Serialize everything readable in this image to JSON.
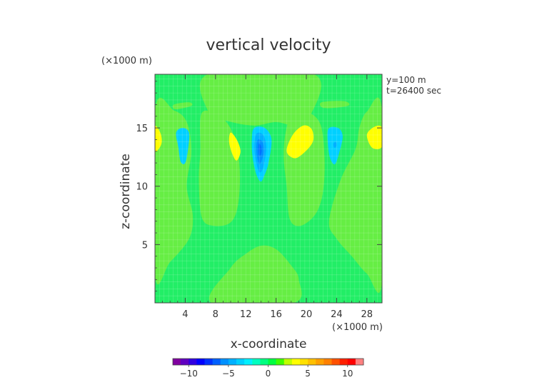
{
  "chart_data": {
    "type": "heatmap",
    "title": "vertical velocity",
    "xlabel": "x-coordinate",
    "ylabel": "z-coordinate",
    "x_unit_label": "(×1000 m)",
    "y_unit_label": "(×1000 m)",
    "annotations": [
      "y=100 m",
      "t=26400 sec"
    ],
    "xlim": [
      0,
      30
    ],
    "ylim": [
      0,
      19.6
    ],
    "x_ticks": [
      4,
      8,
      12,
      16,
      20,
      24,
      28
    ],
    "y_ticks": [
      5,
      10,
      15
    ],
    "grid": true,
    "colorbar": {
      "range": [
        -12,
        12
      ],
      "ticks": [
        -10,
        -5,
        0,
        5,
        10
      ],
      "colors": [
        "#8000a0",
        "#6000c0",
        "#3000e0",
        "#0000ff",
        "#0030ff",
        "#0060ff",
        "#0090ff",
        "#00b0ff",
        "#00d0ff",
        "#00f0ff",
        "#00ffc0",
        "#00ff80",
        "#00ff40",
        "#40ff00",
        "#c0ff00",
        "#ffff00",
        "#ffe000",
        "#ffc000",
        "#ffa000",
        "#ff8000",
        "#ff5000",
        "#ff2000",
        "#ff0000",
        "#ff8080"
      ],
      "background_color": "#22ee66"
    },
    "regions": [
      {
        "level": 1,
        "color": "#66ee44",
        "points": [
          [
            7.0,
            19.6
          ],
          [
            21.0,
            19.6
          ],
          [
            20.5,
            16.0
          ],
          [
            18.5,
            15.2
          ],
          [
            16.0,
            15.5
          ],
          [
            13.0,
            15.2
          ],
          [
            9.5,
            15.6
          ],
          [
            7.2,
            16.2
          ]
        ]
      },
      {
        "level": 1,
        "color": "#66ee44",
        "points": [
          [
            0,
            16.5
          ],
          [
            2.5,
            16.5
          ],
          [
            4.2,
            15.5
          ],
          [
            4.8,
            13.0
          ],
          [
            4.2,
            10.0
          ],
          [
            5.0,
            7.5
          ],
          [
            4.5,
            5.5
          ],
          [
            2.0,
            3.5
          ],
          [
            0,
            2.4
          ]
        ]
      },
      {
        "level": 1,
        "color": "#66ee44",
        "points": [
          [
            6.2,
            16.3
          ],
          [
            8.8,
            15.9
          ],
          [
            10.5,
            14.2
          ],
          [
            11.2,
            11.5
          ],
          [
            11.0,
            8.5
          ],
          [
            10.0,
            6.9
          ],
          [
            7.8,
            6.6
          ],
          [
            6.2,
            7.3
          ],
          [
            5.8,
            10.5
          ],
          [
            6.0,
            13.0
          ]
        ]
      },
      {
        "level": 1,
        "color": "#66ee44",
        "points": [
          [
            17.8,
            15.8
          ],
          [
            19.8,
            16.4
          ],
          [
            21.8,
            15.4
          ],
          [
            22.4,
            12.5
          ],
          [
            22.2,
            9.5
          ],
          [
            21.2,
            7.6
          ],
          [
            19.2,
            6.6
          ],
          [
            17.8,
            7.2
          ],
          [
            17.4,
            10.0
          ],
          [
            17.0,
            13.0
          ]
        ]
      },
      {
        "level": 1,
        "color": "#66ee44",
        "points": [
          [
            28.0,
            16.4
          ],
          [
            30.0,
            16.5
          ],
          [
            30.0,
            1.8
          ],
          [
            28.0,
            2.5
          ],
          [
            26.0,
            4.0
          ],
          [
            24.0,
            5.5
          ],
          [
            23.0,
            7.0
          ],
          [
            24.5,
            10.5
          ],
          [
            26.5,
            13.2
          ],
          [
            27.0,
            15.0
          ]
        ]
      },
      {
        "level": 1,
        "color": "#66ee44",
        "points": [
          [
            7.5,
            0
          ],
          [
            10.0,
            3.0
          ],
          [
            12.0,
            4.2
          ],
          [
            14.0,
            4.9
          ],
          [
            16.0,
            4.6
          ],
          [
            18.0,
            3.2
          ],
          [
            19.0,
            2.0
          ],
          [
            18.3,
            0
          ]
        ]
      },
      {
        "level": 1,
        "color": "#66ee44",
        "points": [
          [
            2.5,
            17.0
          ],
          [
            4.5,
            17.2
          ],
          [
            4.8,
            16.9
          ],
          [
            2.7,
            16.6
          ]
        ]
      },
      {
        "level": 1,
        "color": "#66ee44",
        "points": [
          [
            22.0,
            17.2
          ],
          [
            25.0,
            17.3
          ],
          [
            25.5,
            16.9
          ],
          [
            22.4,
            16.7
          ]
        ]
      },
      {
        "level": 4,
        "color": "#ffff00",
        "points": [
          [
            0,
            15.1
          ],
          [
            0.7,
            14.6
          ],
          [
            0.9,
            13.8
          ],
          [
            0.5,
            13.2
          ],
          [
            0,
            13.1
          ]
        ]
      },
      {
        "level": 4,
        "color": "#ffff00",
        "points": [
          [
            10.0,
            14.6
          ],
          [
            10.8,
            14.0
          ],
          [
            11.3,
            13.0
          ],
          [
            10.8,
            12.2
          ],
          [
            10.2,
            12.8
          ],
          [
            9.8,
            13.8
          ]
        ]
      },
      {
        "level": 4,
        "color": "#ffff00",
        "points": [
          [
            17.4,
            13.0
          ],
          [
            18.2,
            14.4
          ],
          [
            19.6,
            15.2
          ],
          [
            20.7,
            14.9
          ],
          [
            20.9,
            13.9
          ],
          [
            19.9,
            13.0
          ],
          [
            18.5,
            12.4
          ]
        ]
      },
      {
        "level": 4,
        "color": "#ffff00",
        "points": [
          [
            28.0,
            14.4
          ],
          [
            29.0,
            15.1
          ],
          [
            30.0,
            15.0
          ],
          [
            30.0,
            13.4
          ],
          [
            28.7,
            13.3
          ]
        ]
      },
      {
        "level": -2,
        "color": "#00d0ff",
        "points": [
          [
            2.8,
            14.6
          ],
          [
            3.7,
            15.0
          ],
          [
            4.5,
            14.6
          ],
          [
            4.4,
            13.3
          ],
          [
            4.0,
            12.0
          ],
          [
            3.4,
            12.1
          ],
          [
            3.1,
            13.3
          ]
        ]
      },
      {
        "level": -2,
        "color": "#00d0ff",
        "points": [
          [
            13.1,
            15.0
          ],
          [
            14.5,
            15.0
          ],
          [
            15.4,
            14.0
          ],
          [
            15.0,
            12.0
          ],
          [
            14.5,
            11.0
          ],
          [
            14.0,
            10.4
          ],
          [
            13.4,
            11.0
          ],
          [
            12.9,
            12.5
          ],
          [
            12.8,
            14.0
          ]
        ]
      },
      {
        "level": -2,
        "color": "#00d0ff",
        "points": [
          [
            22.9,
            14.9
          ],
          [
            24.2,
            15.0
          ],
          [
            24.8,
            14.3
          ],
          [
            24.4,
            13.0
          ],
          [
            23.8,
            11.9
          ],
          [
            23.2,
            12.3
          ],
          [
            22.9,
            13.3
          ]
        ]
      },
      {
        "level": -4,
        "color": "#00b0ff",
        "points": [
          [
            13.4,
            14.5
          ],
          [
            14.3,
            14.4
          ],
          [
            14.7,
            13.3
          ],
          [
            14.3,
            11.6
          ],
          [
            13.8,
            11.2
          ],
          [
            13.4,
            12.0
          ],
          [
            13.1,
            13.3
          ]
        ]
      },
      {
        "level": -6,
        "color": "#0090ff",
        "points": [
          [
            13.6,
            14.0
          ],
          [
            14.2,
            13.8
          ],
          [
            14.4,
            13.0
          ],
          [
            14.1,
            12.2
          ],
          [
            13.8,
            11.9
          ],
          [
            13.5,
            12.5
          ],
          [
            13.4,
            13.3
          ]
        ]
      },
      {
        "level": -7,
        "color": "#0070ff",
        "points": [
          [
            13.7,
            13.6
          ],
          [
            14.0,
            13.5
          ],
          [
            14.1,
            13.0
          ],
          [
            13.9,
            12.6
          ],
          [
            13.7,
            12.8
          ]
        ]
      },
      {
        "level": -3,
        "color": "#00b0ff",
        "points": [
          [
            23.6,
            13.7
          ],
          [
            23.9,
            13.8
          ],
          [
            24.0,
            13.5
          ],
          [
            23.8,
            13.3
          ],
          [
            23.6,
            13.4
          ]
        ]
      }
    ]
  }
}
